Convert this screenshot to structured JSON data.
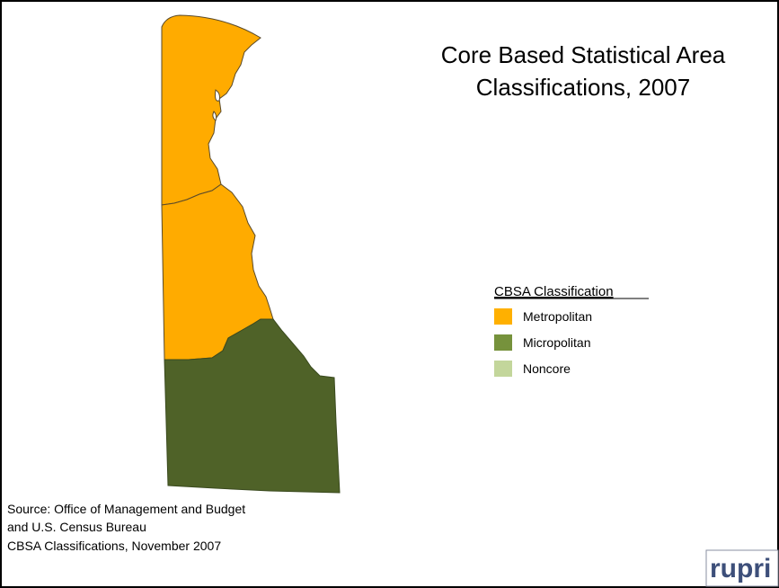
{
  "map": {
    "title": [
      "Core Based Statistical Area",
      "Classifications, 2007"
    ],
    "legend": {
      "heading": "CBSA Classification",
      "items": [
        {
          "label": "Metropolitan",
          "color": "#ffb000"
        },
        {
          "label": "Micropolitan",
          "color": "#76923c"
        },
        {
          "label": "Noncore",
          "color": "#c3d69b"
        }
      ]
    },
    "source": [
      "Source: Office of Management and Budget",
      "and U.S. Census Bureau",
      "CBSA Classifications, November 2007"
    ],
    "logo": "rupri"
  }
}
